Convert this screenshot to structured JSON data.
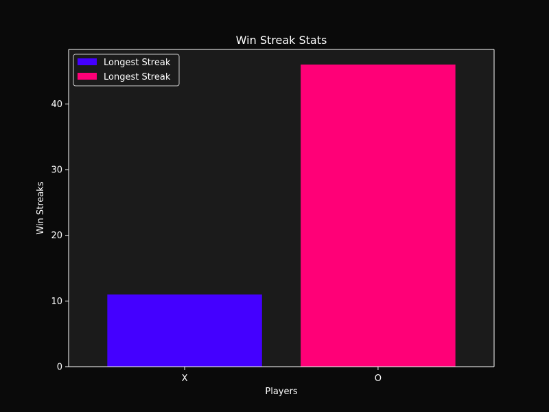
{
  "chart_data": {
    "type": "bar",
    "title": "Win Streak Stats",
    "xlabel": "Players",
    "ylabel": "Win Streaks",
    "categories": [
      "X",
      "O"
    ],
    "series": [
      {
        "name": "Longest Streak",
        "values": [
          11,
          null
        ],
        "color": "#4400ff"
      },
      {
        "name": "Longest Streak",
        "values": [
          null,
          46
        ],
        "color": "#ff0077"
      }
    ],
    "ylim": [
      0,
      48.3
    ],
    "yticks": [
      0,
      10,
      20,
      30,
      40
    ],
    "grid": false,
    "legend": "top-left",
    "colors": {
      "figure_background": "#0a0a0a",
      "axes_background": "#1b1b1b",
      "axis_color": "#ffffff",
      "text_color": "#ffffff"
    }
  }
}
